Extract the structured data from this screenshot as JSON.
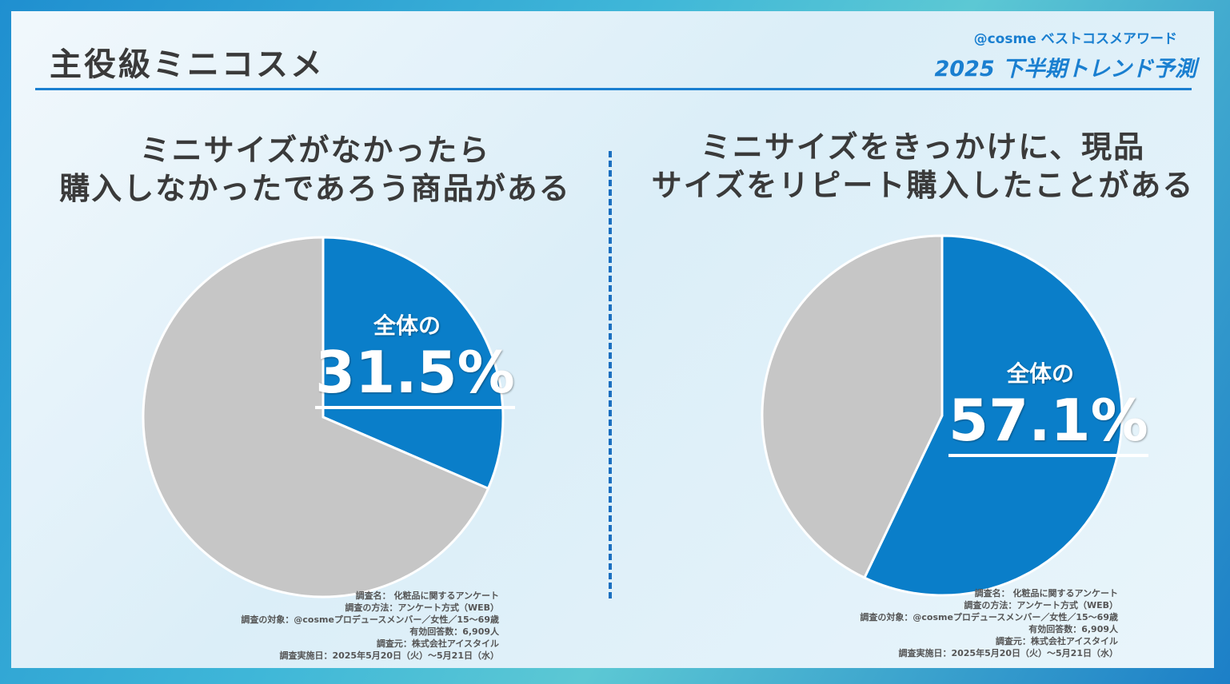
{
  "page": {
    "title": "主役級ミニコスメ",
    "brand": "@cosme ベストコスメアワード",
    "trend_label": "2025 下半期トレンド予測"
  },
  "colors": {
    "blue": "#0a7ec9",
    "gray": "#c6c6c6",
    "accent": "#1a7fd0"
  },
  "chart_data": [
    {
      "type": "pie",
      "title": [
        "ミニサイズがなかったら",
        "購入しなかったであろう商品がある"
      ],
      "slices": [
        {
          "label": "",
          "value": 31.5,
          "color": "#0a7ec9"
        },
        {
          "label": "",
          "value": 68.5,
          "color": "#c6c6c6"
        }
      ],
      "callout": {
        "prefix": "全体の",
        "value": "31.5%"
      }
    },
    {
      "type": "pie",
      "title": [
        "ミニサイズをきっかけに、現品",
        "サイズをリピート購入したことがある"
      ],
      "slices": [
        {
          "label": "",
          "value": 57.1,
          "color": "#0a7ec9"
        },
        {
          "label": "",
          "value": 42.9,
          "color": "#c6c6c6"
        }
      ],
      "callout": {
        "prefix": "全体の",
        "value": "57.1%"
      }
    }
  ],
  "survey_notes": [
    "調査名： 化粧品に関するアンケート",
    "調査の方法：アンケート方式（WEB）",
    "調査の対象：@cosmeプロデュースメンバー／女性／15～69歳",
    "有効回答数：6,909人",
    "調査元：株式会社アイスタイル",
    "調査実施日：2025年5月20日（火）～5月21日（水）"
  ]
}
